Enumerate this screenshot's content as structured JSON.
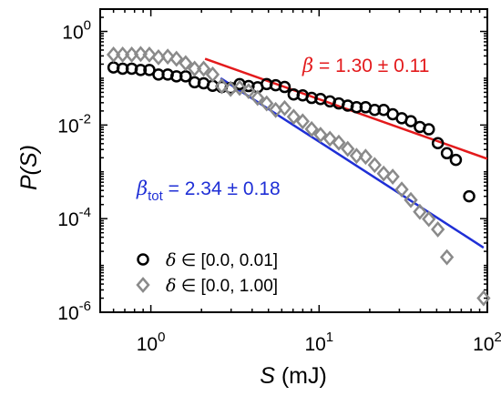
{
  "chart_data": {
    "type": "scatter",
    "x_scale": "log",
    "y_scale": "log",
    "xlim": [
      0.5,
      100
    ],
    "ylim": [
      1e-06,
      3
    ],
    "xlabel": {
      "var": "S",
      "unit": " (mJ)"
    },
    "ylabel": {
      "var": "P(S)"
    },
    "x_ticks": [
      {
        "value": 1,
        "base": "10",
        "exp": "0"
      },
      {
        "value": 10,
        "base": "10",
        "exp": "1"
      },
      {
        "value": 100,
        "base": "10",
        "exp": "2"
      }
    ],
    "y_ticks": [
      {
        "value": 1,
        "base": "10",
        "exp": "0"
      },
      {
        "value": 0.01,
        "base": "10",
        "exp": "-2"
      },
      {
        "value": 0.0001,
        "base": "10",
        "exp": "-4"
      },
      {
        "value": 1e-06,
        "base": "10",
        "exp": "-6"
      }
    ],
    "series": [
      {
        "name": "δ ∈ [0.0, 0.01]",
        "legend_symbol": "δ",
        "legend_text": " ∈ [0.0, 0.01]",
        "marker": "circle",
        "color": "#000000",
        "x": [
          0.6,
          0.68,
          0.77,
          0.87,
          0.98,
          1.11,
          1.26,
          1.42,
          1.61,
          1.82,
          2.06,
          2.33,
          2.64,
          2.98,
          3.37,
          3.81,
          4.31,
          4.88,
          5.52,
          6.24,
          7.06,
          7.99,
          9.03,
          10.2,
          11.6,
          13.1,
          14.8,
          16.7,
          18.9,
          21.4,
          24.2,
          27.4,
          31.0,
          35.1,
          39.7,
          44.9,
          50.8,
          57.5,
          65.0,
          78.0
        ],
        "y": [
          0.17,
          0.16,
          0.16,
          0.15,
          0.15,
          0.12,
          0.12,
          0.11,
          0.11,
          0.082,
          0.078,
          0.069,
          0.065,
          0.062,
          0.075,
          0.068,
          0.064,
          0.075,
          0.071,
          0.065,
          0.045,
          0.043,
          0.038,
          0.036,
          0.032,
          0.029,
          0.026,
          0.024,
          0.024,
          0.021,
          0.021,
          0.017,
          0.014,
          0.0121,
          0.0091,
          0.0081,
          0.0041,
          0.0025,
          0.0018,
          0.0003
        ]
      },
      {
        "name": "δ ∈ [0.0, 1.00]",
        "legend_symbol": "δ",
        "legend_text": " ∈ [0.0, 1.00]",
        "marker": "diamond",
        "color": "#8a8a8a",
        "x": [
          0.6,
          0.68,
          0.77,
          0.87,
          0.98,
          1.11,
          1.26,
          1.42,
          1.61,
          1.82,
          2.06,
          2.33,
          2.64,
          2.98,
          3.37,
          3.81,
          4.31,
          4.88,
          5.52,
          6.24,
          7.06,
          7.99,
          9.03,
          10.2,
          11.6,
          13.1,
          14.8,
          16.7,
          18.9,
          21.4,
          24.2,
          27.4,
          31.0,
          35.1,
          39.7,
          44.9,
          50.8,
          57.5,
          95.0
        ],
        "y": [
          0.32,
          0.32,
          0.32,
          0.33,
          0.32,
          0.28,
          0.29,
          0.26,
          0.21,
          0.16,
          0.16,
          0.12,
          0.068,
          0.059,
          0.062,
          0.053,
          0.038,
          0.029,
          0.021,
          0.023,
          0.015,
          0.012,
          0.0082,
          0.0062,
          0.0051,
          0.0042,
          0.0031,
          0.0022,
          0.0021,
          0.0014,
          0.00092,
          0.00079,
          0.00042,
          0.00025,
          0.00014,
          9.8e-05,
          5.9e-05,
          1.5e-05,
          2e-06
        ]
      }
    ],
    "fit_lines": [
      {
        "color": "#e31a1c",
        "x": [
          2.1,
          100
        ],
        "y": [
          0.26,
          0.0019
        ]
      },
      {
        "color": "#1f2fd6",
        "x": [
          2.6,
          95
        ],
        "y": [
          0.1,
          2.4e-05
        ]
      }
    ],
    "annotations": [
      {
        "id": "beta",
        "color": "#e31a1c",
        "symbol": "β",
        "sub": "",
        "text": " = 1.30 ± 0.11"
      },
      {
        "id": "beta_tot",
        "color": "#1f2fd6",
        "symbol": "β",
        "sub": "tot",
        "text": " = 2.34 ± 0.18"
      }
    ]
  }
}
